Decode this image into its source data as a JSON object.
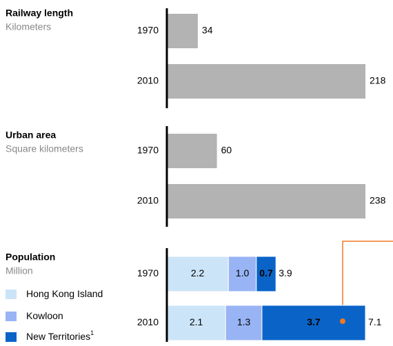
{
  "chart_data": [
    {
      "type": "bar",
      "title": "Railway length",
      "subtitle": "Kilometers",
      "categories": [
        "1970",
        "2010"
      ],
      "values": [
        34,
        218
      ],
      "color": "#b3b3b3"
    },
    {
      "type": "bar",
      "title": "Urban area",
      "subtitle": "Square kilometers",
      "categories": [
        "1970",
        "2010"
      ],
      "values": [
        60,
        238
      ],
      "color": "#b3b3b3"
    },
    {
      "type": "stacked_bar",
      "title": "Population",
      "subtitle": "Million",
      "categories": [
        "1970",
        "2010"
      ],
      "series": [
        {
          "name": "Hong Kong Island",
          "color": "#cce4f7",
          "label_color": "#000000",
          "values": [
            2.2,
            2.1
          ]
        },
        {
          "name": "Kowloon",
          "color": "#98b4f5",
          "label_color": "#000000",
          "values": [
            1,
            1.3
          ],
          "value_labels": [
            "1.0",
            "1.3"
          ]
        },
        {
          "name": "New Territories",
          "color": "#0a64c8",
          "label_color": "#ffffff",
          "values": [
            0.7,
            3.7
          ],
          "footnote_marker": "1"
        }
      ],
      "totals": [
        3.9,
        7.1
      ]
    }
  ]
}
